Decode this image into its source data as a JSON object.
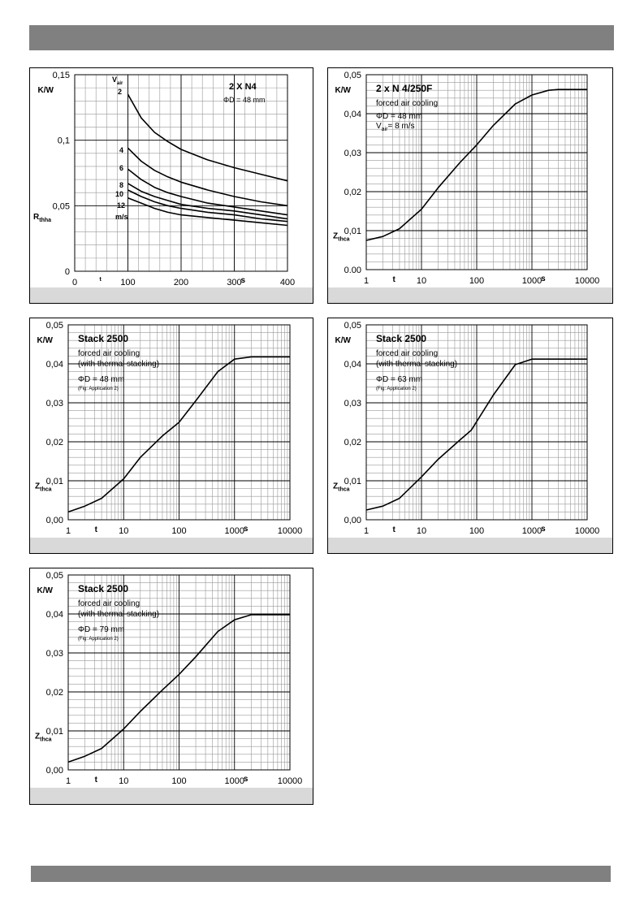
{
  "page": {
    "background": "#ffffff",
    "bar_color": "#808080",
    "footer_color": "#d9d9d9"
  },
  "chart_data": [
    {
      "id": "c1",
      "type": "line",
      "title": "2 X N4",
      "notes": [
        "ΦD = 48 mm"
      ],
      "x_scale": "linear",
      "xlim": [
        0,
        400
      ],
      "x_ticks": [
        0,
        100,
        200,
        300,
        400
      ],
      "x_tick_labels": [
        "0",
        "100",
        "200",
        "300",
        "400"
      ],
      "ylim": [
        0,
        0.15
      ],
      "y_ticks": [
        0,
        0.05,
        0.1,
        0.15
      ],
      "y_tick_labels": [
        "0",
        "0,05",
        "0,1",
        "0,15"
      ],
      "unit_label": "K/W",
      "y_symbol": {
        "main": "R",
        "sub": "thha"
      },
      "x_symbol": "t",
      "x_unit": "s",
      "legend_header": {
        "main": "V",
        "sub": "air"
      },
      "legend_footer": "m/s",
      "grid": true,
      "series": [
        {
          "name": "2",
          "x": [
            100,
            125,
            150,
            175,
            200,
            250,
            300,
            350,
            400
          ],
          "y": [
            0.135,
            0.117,
            0.106,
            0.099,
            0.093,
            0.085,
            0.079,
            0.074,
            0.069
          ]
        },
        {
          "name": "4",
          "x": [
            100,
            125,
            150,
            175,
            200,
            250,
            300,
            350,
            400
          ],
          "y": [
            0.094,
            0.084,
            0.077,
            0.072,
            0.068,
            0.062,
            0.057,
            0.053,
            0.05
          ]
        },
        {
          "name": "6",
          "x": [
            100,
            125,
            150,
            175,
            200,
            250,
            300,
            350,
            400
          ],
          "y": [
            0.078,
            0.07,
            0.064,
            0.06,
            0.057,
            0.052,
            0.049,
            0.046,
            0.043
          ]
        },
        {
          "name": "8",
          "x": [
            100,
            125,
            150,
            175,
            200,
            250,
            300,
            350,
            400
          ],
          "y": [
            0.067,
            0.061,
            0.057,
            0.054,
            0.051,
            0.048,
            0.046,
            0.043,
            0.04
          ]
        },
        {
          "name": "10",
          "x": [
            100,
            125,
            150,
            175,
            200,
            250,
            300,
            350,
            400
          ],
          "y": [
            0.062,
            0.057,
            0.053,
            0.05,
            0.048,
            0.045,
            0.043,
            0.04,
            0.038
          ]
        },
        {
          "name": "12",
          "x": [
            100,
            125,
            150,
            175,
            200,
            250,
            300,
            350,
            400
          ],
          "y": [
            0.056,
            0.052,
            0.048,
            0.045,
            0.043,
            0.041,
            0.039,
            0.037,
            0.035
          ]
        }
      ]
    },
    {
      "id": "c2",
      "type": "line",
      "title": "2 x N 4/250F",
      "notes": [
        "forced air cooling",
        "ΦD = 48 mm"
      ],
      "note_v": {
        "main": "V",
        "sub": "air",
        "rest": "= 8 m/s"
      },
      "x_scale": "log",
      "xlim": [
        1,
        10000
      ],
      "x_ticks": [
        1,
        10,
        100,
        1000,
        10000
      ],
      "x_tick_labels": [
        "1",
        "10",
        "100",
        "1000",
        "10000"
      ],
      "ylim": [
        0,
        0.05
      ],
      "y_ticks": [
        0,
        0.01,
        0.02,
        0.03,
        0.04,
        0.05
      ],
      "y_tick_labels": [
        "0.00",
        "0,01",
        "0,02",
        "0,03",
        "0,04",
        "0,05"
      ],
      "unit_label": "K/W",
      "y_symbol": {
        "main": "Z",
        "sub": "thca"
      },
      "x_symbol": "t",
      "x_unit": "s",
      "grid": true,
      "series": [
        {
          "x": [
            1,
            2,
            4,
            10,
            20,
            50,
            100,
            200,
            500,
            1000,
            2000,
            3000,
            10000
          ],
          "y": [
            0.0075,
            0.0085,
            0.0105,
            0.0155,
            0.021,
            0.0275,
            0.032,
            0.037,
            0.0425,
            0.0448,
            0.046,
            0.0462,
            0.0462
          ]
        }
      ]
    },
    {
      "id": "c3",
      "type": "line",
      "title": "Stack 2500",
      "notes": [
        "forced air cooling",
        "(with thermal stacking)",
        "ΦD = 48 mm",
        "(Fig: Application 2)"
      ],
      "x_scale": "log",
      "xlim": [
        1,
        10000
      ],
      "x_ticks": [
        1,
        10,
        100,
        1000,
        10000
      ],
      "x_tick_labels": [
        "1",
        "10",
        "100",
        "1000",
        "10000"
      ],
      "ylim": [
        0,
        0.05
      ],
      "y_ticks": [
        0,
        0.01,
        0.02,
        0.03,
        0.04,
        0.05
      ],
      "y_tick_labels": [
        "0,00",
        "0,01",
        "0,02",
        "0,03",
        "0,04",
        "0,05"
      ],
      "unit_label": "K/W",
      "y_symbol": {
        "main": "Z",
        "sub": "thca"
      },
      "x_symbol": "t",
      "x_unit": "s",
      "grid": true,
      "series": [
        {
          "x": [
            1,
            2,
            4,
            10,
            20,
            50,
            100,
            200,
            500,
            1000,
            2000,
            10000
          ],
          "y": [
            0.002,
            0.0035,
            0.0055,
            0.0105,
            0.016,
            0.0215,
            0.025,
            0.0305,
            0.038,
            0.0412,
            0.0418,
            0.0418
          ]
        }
      ]
    },
    {
      "id": "c4",
      "type": "line",
      "title": "Stack 2500",
      "notes": [
        "forced air cooling",
        "(with thermal stacking)",
        "ΦD = 63 mm",
        "(Fig: Application 2)"
      ],
      "x_scale": "log",
      "xlim": [
        1,
        10000
      ],
      "x_ticks": [
        1,
        10,
        100,
        1000,
        10000
      ],
      "x_tick_labels": [
        "1",
        "10",
        "100",
        "1000",
        "10000"
      ],
      "ylim": [
        0,
        0.05
      ],
      "y_ticks": [
        0,
        0.01,
        0.02,
        0.03,
        0.04,
        0.05
      ],
      "y_tick_labels": [
        "0,00",
        "0,01",
        "0,02",
        "0,03",
        "0,04",
        "0,05"
      ],
      "unit_label": "K/W",
      "y_symbol": {
        "main": "Z",
        "sub": "thca"
      },
      "x_symbol": "t",
      "x_unit": "s",
      "grid": true,
      "series": [
        {
          "x": [
            1,
            2,
            4,
            10,
            20,
            50,
            80,
            200,
            500,
            1000,
            10000
          ],
          "y": [
            0.0025,
            0.0035,
            0.0055,
            0.011,
            0.0155,
            0.0205,
            0.023,
            0.032,
            0.0398,
            0.0412,
            0.0412
          ]
        }
      ]
    },
    {
      "id": "c5",
      "type": "line",
      "title": "Stack 2500",
      "notes": [
        "forced air cooling",
        "(with thermal stacking)",
        "ΦD = 79 mm",
        "(Fig: Application 2)"
      ],
      "x_scale": "log",
      "xlim": [
        1,
        10000
      ],
      "x_ticks": [
        1,
        10,
        100,
        1000,
        10000
      ],
      "x_tick_labels": [
        "1",
        "10",
        "100",
        "1000",
        "10000"
      ],
      "ylim": [
        0,
        0.05
      ],
      "y_ticks": [
        0,
        0.01,
        0.02,
        0.03,
        0.04,
        0.05
      ],
      "y_tick_labels": [
        "0,00",
        "0,01",
        "0,02",
        "0,03",
        "0,04",
        "0,05"
      ],
      "unit_label": "K/W",
      "y_symbol": {
        "main": "Z",
        "sub": "thca"
      },
      "x_symbol": "t",
      "x_unit": "s",
      "grid": true,
      "series": [
        {
          "x": [
            1,
            2,
            4,
            10,
            20,
            50,
            100,
            200,
            500,
            1000,
            2000,
            10000
          ],
          "y": [
            0.002,
            0.0035,
            0.0055,
            0.0105,
            0.015,
            0.0205,
            0.0245,
            0.029,
            0.0355,
            0.0385,
            0.0398,
            0.0398
          ]
        }
      ]
    }
  ]
}
